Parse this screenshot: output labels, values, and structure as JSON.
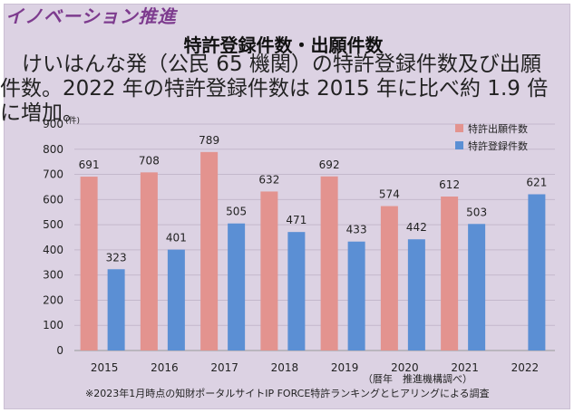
{
  "header": {
    "section": "イノベーション推進",
    "title": "特許登録件数・出願件数",
    "summary": "けいはんな発（公民 65 機関）の特許登録件数及び出願件数。2022 年の特許登録件数は 2015 年に比べ約 1.9 倍に増加。"
  },
  "footer": {
    "source": "（暦年　推進機構調べ）",
    "note": "※2023年1月時点の知財ポータルサイトIP FORCE特許ランキングとヒアリングによる調査"
  },
  "chart_data": {
    "type": "bar",
    "title": "特許登録件数・出願件数",
    "xlabel": "",
    "ylabel": "",
    "y_unit": "(件)",
    "ylim": [
      0,
      900
    ],
    "yticks": [
      0,
      100,
      200,
      300,
      400,
      500,
      600,
      700,
      800,
      900
    ],
    "grid": true,
    "legend_position": "top-right",
    "categories": [
      "2015",
      "2016",
      "2017",
      "2018",
      "2019",
      "2020",
      "2021",
      "2022"
    ],
    "series": [
      {
        "name": "特許出願件数",
        "color": "#e3938f",
        "values": [
          691,
          708,
          789,
          632,
          692,
          574,
          612,
          null
        ]
      },
      {
        "name": "特許登録件数",
        "color": "#5b8fd4",
        "values": [
          323,
          401,
          505,
          471,
          433,
          442,
          503,
          621
        ]
      }
    ]
  }
}
